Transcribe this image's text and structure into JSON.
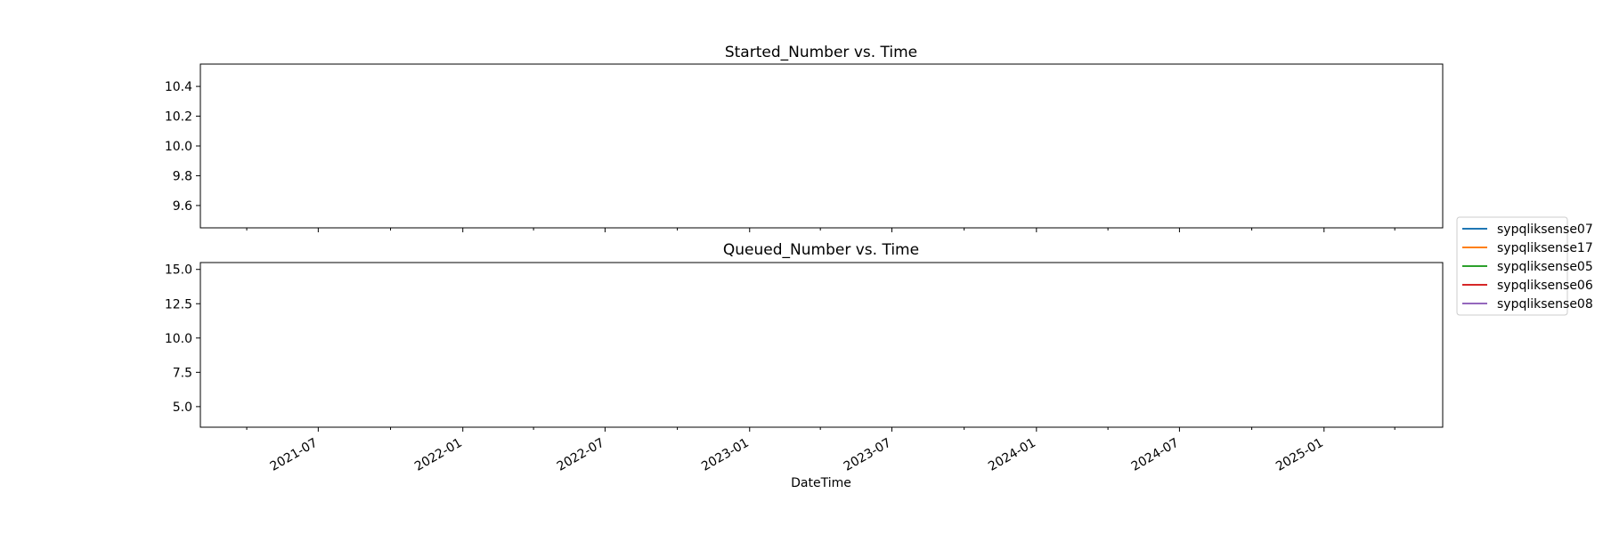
{
  "chart_data": [
    {
      "type": "line",
      "title": "Started_Number vs. Time",
      "xlabel": "",
      "ylabel": "",
      "ylim": [
        9.45,
        10.55
      ],
      "yticks": [
        {
          "value": 9.6,
          "label": "9.6"
        },
        {
          "value": 9.8,
          "label": "9.8"
        },
        {
          "value": 10.0,
          "label": "10.0"
        },
        {
          "value": 10.2,
          "label": "10.2"
        },
        {
          "value": 10.4,
          "label": "10.4"
        }
      ],
      "series": []
    },
    {
      "type": "line",
      "title": "Queued_Number vs. Time",
      "xlabel": "DateTime",
      "ylabel": "",
      "ylim": [
        3.5,
        15.5
      ],
      "yticks": [
        {
          "value": 5.0,
          "label": "5.0"
        },
        {
          "value": 7.5,
          "label": "7.5"
        },
        {
          "value": 10.0,
          "label": "10.0"
        },
        {
          "value": 12.5,
          "label": "12.5"
        },
        {
          "value": 15.0,
          "label": "15.0"
        }
      ],
      "series": []
    }
  ],
  "shared_x": {
    "xlim": [
      "2021-02-01",
      "2025-06-01"
    ],
    "major_ticks": [
      {
        "value": "2021-07-01",
        "label": "2021-07"
      },
      {
        "value": "2022-01-01",
        "label": "2022-01"
      },
      {
        "value": "2022-07-01",
        "label": "2022-07"
      },
      {
        "value": "2023-01-01",
        "label": "2023-01"
      },
      {
        "value": "2023-07-01",
        "label": "2023-07"
      },
      {
        "value": "2024-01-01",
        "label": "2024-01"
      },
      {
        "value": "2024-07-01",
        "label": "2024-07"
      },
      {
        "value": "2025-01-01",
        "label": "2025-01"
      }
    ],
    "minor_ticks": [
      "2021-04-01",
      "2021-10-01",
      "2022-04-01",
      "2022-10-01",
      "2023-04-01",
      "2023-10-01",
      "2024-04-01",
      "2024-10-01",
      "2025-04-01"
    ]
  },
  "legend": {
    "placement": "center-right",
    "entries": [
      {
        "label": "sypqliksense07",
        "color": "#1f77b4"
      },
      {
        "label": "sypqliksense17",
        "color": "#ff7f0e"
      },
      {
        "label": "sypqliksense05",
        "color": "#2ca02c"
      },
      {
        "label": "sypqliksense06",
        "color": "#d62728"
      },
      {
        "label": "sypqliksense08",
        "color": "#9467bd"
      }
    ]
  }
}
